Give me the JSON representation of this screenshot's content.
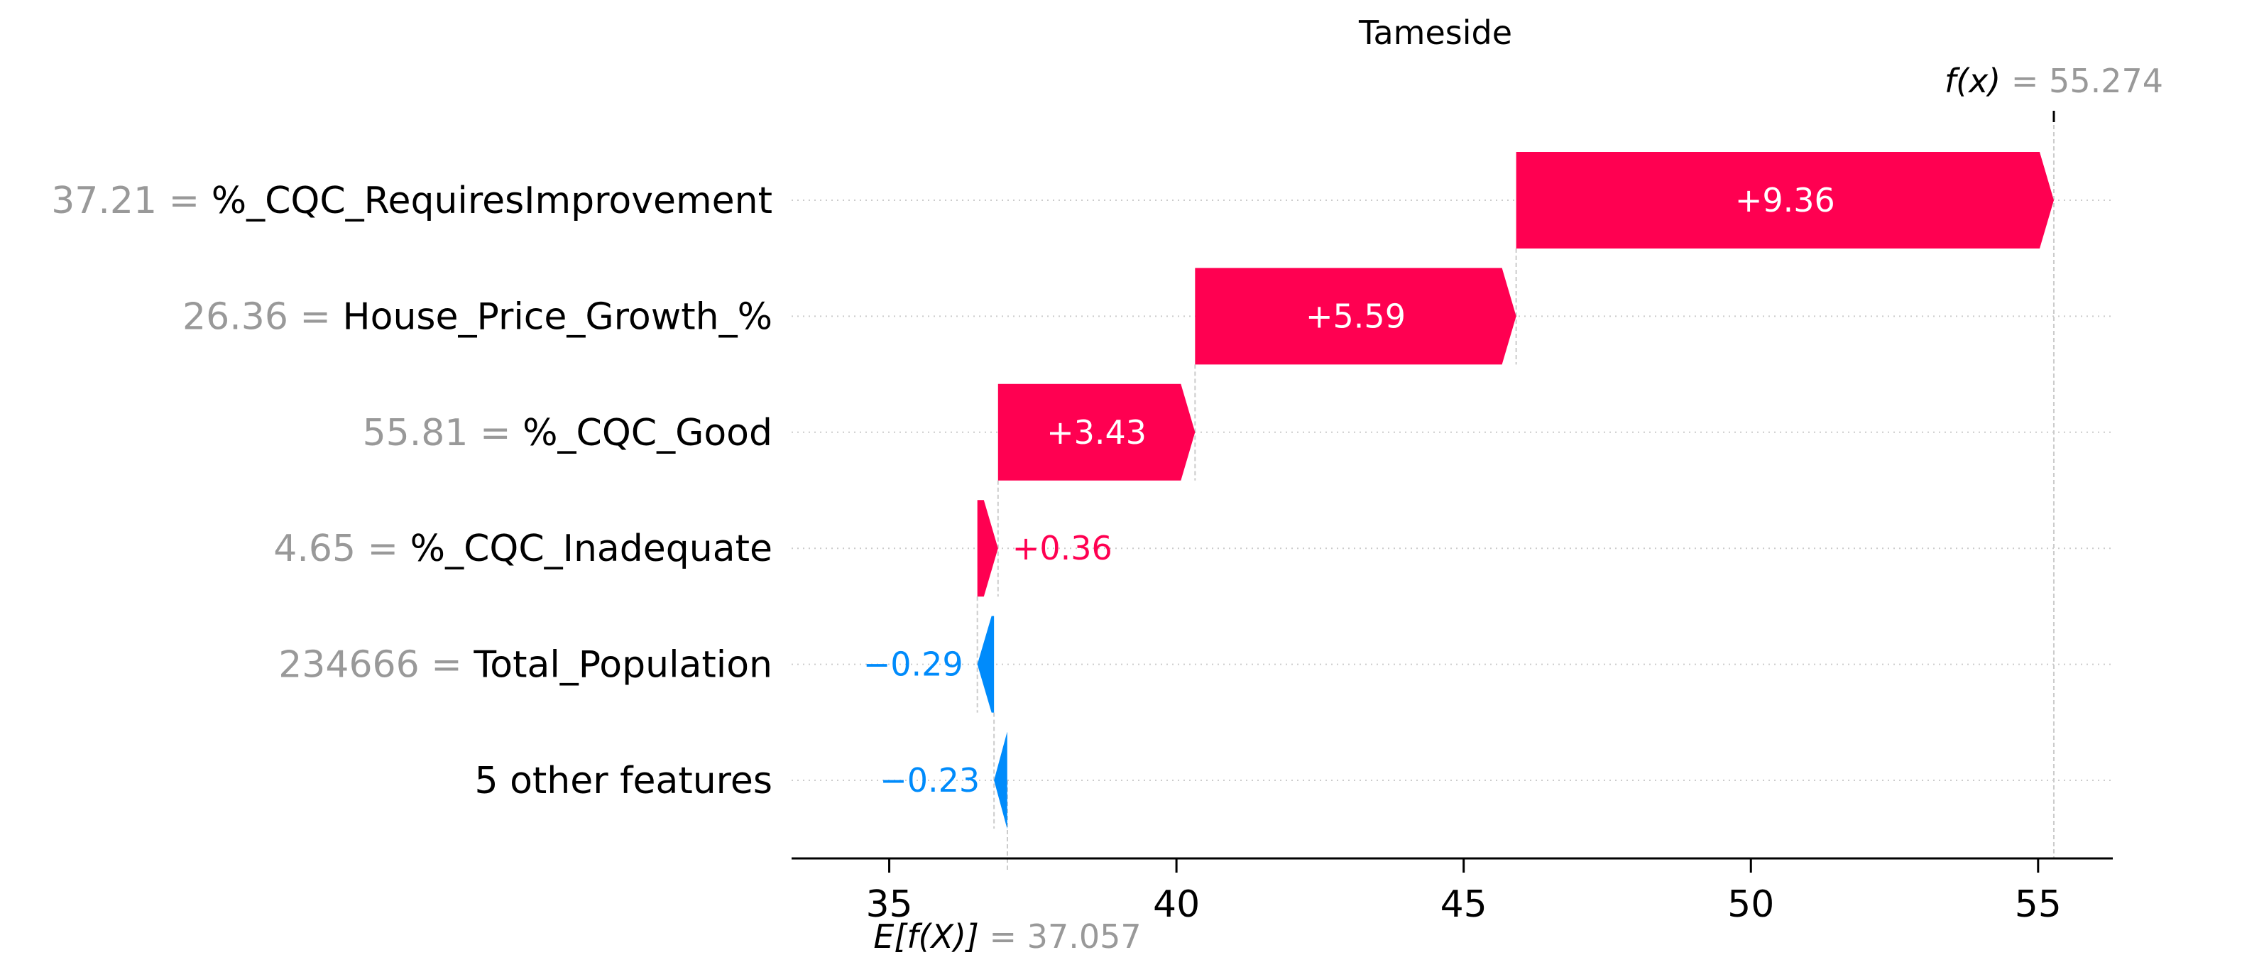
{
  "chart_data": {
    "type": "waterfall",
    "title": "Tameside",
    "base_value": 37.057,
    "base_value_label": "37.057",
    "output_value": 55.274,
    "output_value_label": "55.274",
    "fx_symbol": "f(x)",
    "efx_symbol": "E[f(X)]",
    "features": [
      {
        "value": "37.21",
        "name": "%_CQC_RequiresImprovement",
        "contribution": 9.36,
        "label": "+9.36"
      },
      {
        "value": "26.36",
        "name": "House_Price_Growth_%",
        "contribution": 5.59,
        "label": "+5.59"
      },
      {
        "value": "55.81",
        "name": "%_CQC_Good",
        "contribution": 3.43,
        "label": "+3.43"
      },
      {
        "value": "4.65",
        "name": "%_CQC_Inadequate",
        "contribution": 0.36,
        "label": "+0.36"
      },
      {
        "value": "234666",
        "name": "Total_Population",
        "contribution": -0.29,
        "label": "−0.29"
      },
      {
        "value": "",
        "name": "5 other features",
        "contribution": -0.23,
        "label": "−0.23"
      }
    ],
    "xlim": [
      33.3,
      56.3
    ],
    "xticks": [
      35,
      40,
      45,
      50,
      55
    ],
    "colors": {
      "positive": "#ff0051",
      "negative": "#008bfb",
      "value_text": "#999999",
      "axis": "#000000",
      "grid": "#cccccc"
    }
  }
}
